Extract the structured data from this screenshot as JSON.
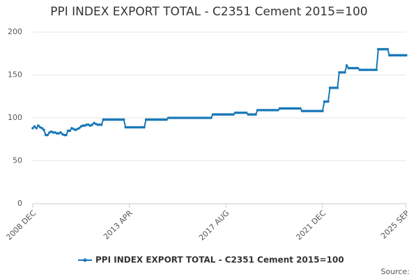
{
  "chart_data": {
    "type": "line",
    "title": "PPI INDEX EXPORT TOTAL - C2351 Cement 2015=100",
    "source_label": "Source:",
    "categories": [
      "2008 DEC",
      null,
      null,
      null,
      null,
      null,
      null,
      null,
      null,
      null,
      null,
      null,
      null,
      null,
      null,
      null,
      null,
      null,
      null,
      null,
      null,
      null,
      null,
      null,
      null,
      null,
      null,
      null,
      null,
      null,
      null,
      null,
      null,
      null,
      null,
      null,
      null,
      null,
      null,
      null,
      null,
      null,
      null,
      null,
      null,
      null,
      null,
      null,
      null,
      null,
      null,
      null,
      "2013 APR",
      null,
      null,
      null,
      null,
      null,
      null,
      null,
      null,
      null,
      null,
      null,
      null,
      null,
      null,
      null,
      null,
      null,
      null,
      null,
      null,
      null,
      null,
      null,
      null,
      null,
      null,
      null,
      null,
      null,
      null,
      null,
      null,
      null,
      null,
      null,
      null,
      null,
      null,
      null,
      null,
      null,
      null,
      null,
      null,
      null,
      null,
      null,
      null,
      null,
      null,
      null,
      "2017 AUG",
      null,
      null,
      null,
      null,
      null,
      null,
      null,
      null,
      null,
      null,
      null,
      null,
      null,
      null,
      null,
      null,
      null,
      null,
      null,
      null,
      null,
      null,
      null,
      null,
      null,
      null,
      null,
      null,
      null,
      null,
      null,
      null,
      null,
      null,
      null,
      null,
      null,
      null,
      null,
      null,
      null,
      null,
      null,
      null,
      null,
      null,
      null,
      null,
      null,
      null,
      null,
      "2021 DEC",
      null,
      null,
      null,
      null,
      null,
      null,
      null,
      null,
      null,
      null,
      null,
      null,
      null,
      null,
      null,
      null,
      null,
      null,
      null,
      null,
      null,
      null,
      null,
      null,
      null,
      null,
      null,
      null,
      null,
      null,
      null,
      null,
      null,
      null,
      null,
      null,
      null,
      null,
      null,
      null,
      null,
      null,
      null,
      null,
      "2025 SEP"
    ],
    "series": [
      {
        "name": "PPI INDEX EXPORT TOTAL - C2351 Cement 2015=100",
        "color": "#1878b8",
        "values": [
          88,
          90,
          88,
          91,
          89,
          88,
          86,
          80,
          80,
          83,
          84,
          83,
          83,
          82,
          82,
          83,
          81,
          80,
          80,
          85,
          85,
          88,
          87,
          86,
          87,
          88,
          90,
          91,
          91,
          92,
          92,
          91,
          92,
          94,
          93,
          92,
          92,
          92,
          98,
          98,
          98,
          98,
          98,
          98,
          98,
          98,
          98,
          98,
          98,
          98,
          89,
          89,
          89,
          89,
          89,
          89,
          89,
          89,
          89,
          89,
          89,
          98,
          98,
          98,
          98,
          98,
          98,
          98,
          98,
          98,
          98,
          98,
          98,
          100,
          100,
          100,
          100,
          100,
          100,
          100,
          100,
          100,
          100,
          100,
          100,
          100,
          100,
          100,
          100,
          100,
          100,
          100,
          100,
          100,
          100,
          100,
          100,
          104,
          104,
          104,
          104,
          104,
          104,
          104,
          104,
          104,
          104,
          104,
          104,
          106,
          106,
          106,
          106,
          106,
          106,
          106,
          104,
          104,
          104,
          104,
          104,
          109,
          109,
          109,
          109,
          109,
          109,
          109,
          109,
          109,
          109,
          109,
          109,
          111,
          111,
          111,
          111,
          111,
          111,
          111,
          111,
          111,
          111,
          111,
          111,
          108,
          108,
          108,
          108,
          108,
          108,
          108,
          108,
          108,
          108,
          108,
          108,
          119,
          119,
          119,
          135,
          135,
          135,
          135,
          135,
          153,
          153,
          153,
          153,
          161,
          158,
          158,
          158,
          158,
          158,
          158,
          156,
          156,
          156,
          156,
          156,
          156,
          156,
          156,
          156,
          156,
          180,
          180,
          180,
          180,
          180,
          180,
          173,
          173,
          173,
          173,
          173,
          173,
          173,
          173,
          173,
          173
        ]
      }
    ],
    "ylim": [
      0,
      200
    ],
    "yticks": [
      0,
      50,
      100,
      150,
      200
    ],
    "grid": true
  }
}
